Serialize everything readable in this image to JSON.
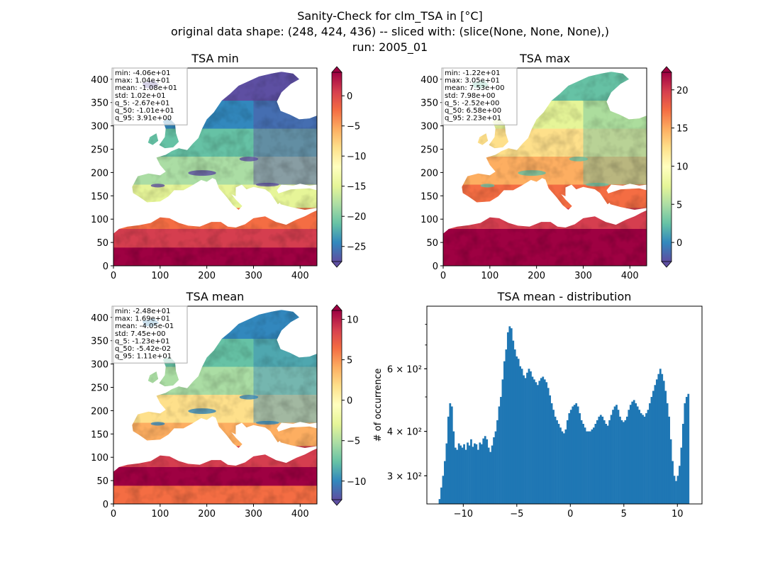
{
  "suptitle": {
    "line1": "Sanity-Check for clm_TSA in [°C]",
    "line2": "original data shape: (248, 424, 436) -- sliced with: (slice(None, None, None),)",
    "line3": "run: 2005_01"
  },
  "chart_data": [
    {
      "type": "heatmap",
      "title": "TSA min",
      "colormap": "Spectral_r",
      "xlim": [
        0,
        436
      ],
      "ylim": [
        0,
        424
      ],
      "xticks": [
        0,
        100,
        200,
        300,
        400
      ],
      "yticks": [
        0,
        50,
        100,
        150,
        200,
        250,
        300,
        350,
        400
      ],
      "clim": [
        -27.5,
        3.9
      ],
      "colorbar_ticks": [
        0,
        -5,
        -10,
        -15,
        -20,
        -25
      ],
      "colorbar_labels": [
        "0",
        "−5",
        "−10",
        "−15",
        "−20",
        "−25"
      ],
      "stats": [
        "min: -4.06e+01",
        "max: 1.04e+01",
        "mean: -1.08e+01",
        "std: 1.02e+01",
        "q_5: -2.67e+01",
        "q_50: -1.01e+01",
        "q_95: 3.91e+00"
      ]
    },
    {
      "type": "heatmap",
      "title": "TSA max",
      "colormap": "Spectral_r",
      "xlim": [
        0,
        436
      ],
      "ylim": [
        0,
        424
      ],
      "xticks": [
        0,
        100,
        200,
        300,
        400
      ],
      "yticks": [
        0,
        50,
        100,
        150,
        200,
        250,
        300,
        350,
        400
      ],
      "clim": [
        -2.5,
        22.3
      ],
      "colorbar_ticks": [
        0,
        5,
        10,
        15,
        20
      ],
      "colorbar_labels": [
        "0",
        "5",
        "10",
        "15",
        "20"
      ],
      "stats": [
        "min: -1.22e+01",
        "max: 3.05e+01",
        "mean: 7.53e+00",
        "std: 7.98e+00",
        "q_5: -2.52e+00",
        "q_50: 6.58e+00",
        "q_95: 2.23e+01"
      ]
    },
    {
      "type": "heatmap",
      "title": "TSA mean",
      "colormap": "Spectral_r",
      "xlim": [
        0,
        436
      ],
      "ylim": [
        0,
        424
      ],
      "xticks": [
        0,
        100,
        200,
        300,
        400
      ],
      "yticks": [
        0,
        50,
        100,
        150,
        200,
        250,
        300,
        350,
        400
      ],
      "clim": [
        -12.3,
        11.1
      ],
      "colorbar_ticks": [
        10,
        5,
        0,
        -5,
        -10
      ],
      "colorbar_labels": [
        "10",
        "5",
        "0",
        "−5",
        "−10"
      ],
      "stats": [
        "min: -2.48e+01",
        "max: 1.69e+01",
        "mean: -4.05e-01",
        "std: 7.45e+00",
        "q_5: -1.23e+01",
        "q_50: -5.42e-02",
        "q_95: 1.11e+01"
      ]
    },
    {
      "type": "bar",
      "title": "TSA mean - distribution",
      "ylabel": "# of occurrence",
      "yscale": "log",
      "xlim": [
        -13.4,
        12.3
      ],
      "ylim": [
        250,
        900
      ],
      "xticks": [
        -10,
        -5,
        0,
        5,
        10
      ],
      "xtick_labels": [
        "−10",
        "−5",
        "0",
        "5",
        "10"
      ],
      "yticks_major": [
        300,
        400,
        600
      ],
      "ytick_labels": [
        "3 × 10²",
        "4 × 10²",
        "6 × 10²"
      ],
      "bin_range": [
        -12.3,
        11.1
      ],
      "color": "#1f77b4",
      "counts": [
        258,
        278,
        300,
        330,
        370,
        440,
        480,
        470,
        400,
        360,
        355,
        370,
        365,
        360,
        368,
        355,
        372,
        365,
        380,
        362,
        370,
        368,
        355,
        372,
        368,
        382,
        388,
        380,
        360,
        350,
        365,
        385,
        400,
        430,
        470,
        500,
        560,
        630,
        680,
        760,
        790,
        780,
        720,
        680,
        650,
        640,
        610,
        600,
        575,
        565,
        585,
        600,
        590,
        570,
        560,
        550,
        540,
        555,
        565,
        570,
        560,
        550,
        530,
        505,
        480,
        460,
        440,
        430,
        420,
        410,
        400,
        395,
        405,
        430,
        450,
        460,
        470,
        475,
        480,
        470,
        450,
        430,
        420,
        410,
        400,
        400,
        400,
        405,
        410,
        420,
        430,
        440,
        445,
        440,
        430,
        420,
        415,
        430,
        445,
        460,
        470,
        475,
        460,
        440,
        430,
        425,
        430,
        440,
        460,
        475,
        485,
        490,
        480,
        470,
        460,
        450,
        445,
        440,
        450,
        460,
        480,
        500,
        520,
        540,
        560,
        580,
        600,
        580,
        555,
        520,
        480,
        440,
        380,
        330,
        300,
        290,
        300,
        320,
        360,
        420,
        480,
        500,
        510
      ]
    }
  ]
}
